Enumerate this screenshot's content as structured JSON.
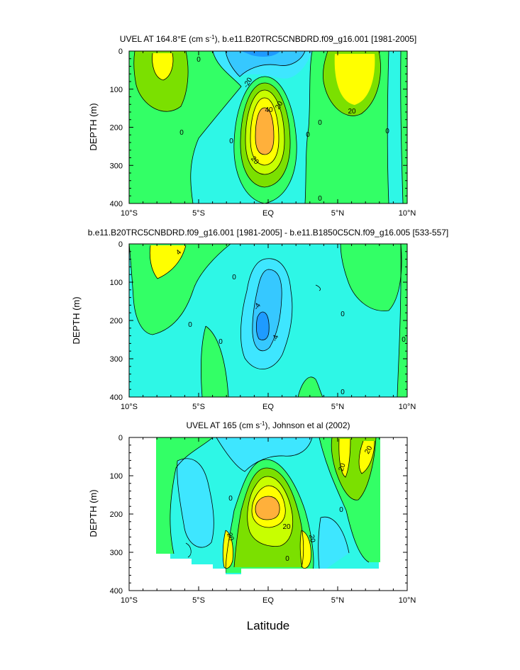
{
  "colors": {
    "c_neg30": "#1e9bff",
    "c_neg20": "#36c8ff",
    "c_neg10": "#3ee6ff",
    "c_0": "#2ef7e6",
    "c_10": "#33ff66",
    "c_20": "#7be000",
    "c_30": "#c8ff00",
    "c_40": "#ffff00",
    "c_50": "#ffb03b",
    "line": "#000000"
  },
  "chart_data": [
    {
      "type": "contour",
      "title_main": "UVEL AT 164.8°E (cm s",
      "title_sup": "-1",
      "title_rest": "), b.e11.B20TRC5CNBDRD.f09_g16.001 [1981-2005]",
      "ylabel": "DEPTH (m)",
      "xlabel": "",
      "xlim": [
        -10,
        10
      ],
      "ylim": [
        400,
        0
      ],
      "xticks": [
        "10°S",
        "5°S",
        "EQ",
        "5°N",
        "10°N"
      ],
      "yticks": [
        "0",
        "100",
        "200",
        "300",
        "400"
      ],
      "contour_labels": [
        "0",
        "-20",
        "40",
        "20",
        "0",
        "0",
        "0",
        "20",
        "0",
        "20",
        "0",
        "0"
      ]
    },
    {
      "type": "contour",
      "title_main": "b.e11.B20TRC5CNBDRD.f09_g16.001 [1981-2005] - b.e11.B1850C5CN.f09_g16.005 [533-557]",
      "title_sup": "",
      "title_rest": "",
      "ylabel": "DEPTH (m)",
      "xlabel": "",
      "xlim": [
        -10,
        10
      ],
      "ylim": [
        400,
        0
      ],
      "xticks": [
        "10°S",
        "5°S",
        "EQ",
        "5°N",
        "10°N"
      ],
      "yticks": [
        "0",
        "100",
        "200",
        "300",
        "400"
      ],
      "contour_labels": [
        "4",
        "0",
        "0",
        "-4",
        "-4",
        "0",
        "0",
        "0",
        "0"
      ]
    },
    {
      "type": "contour",
      "title_main": "UVEL AT 165 (cm s",
      "title_sup": "-1",
      "title_rest": "), Johnson et al (2002)",
      "ylabel": "DEPTH (m)",
      "xlabel": "Latitude",
      "xlim": [
        -10,
        10
      ],
      "ylim": [
        400,
        0
      ],
      "xticks": [
        "10°S",
        "5°S",
        "EQ",
        "5°N",
        "10°N"
      ],
      "yticks": [
        "0",
        "100",
        "200",
        "300",
        "400"
      ],
      "contour_labels": [
        "20",
        "20",
        "0",
        "20",
        "20",
        "20",
        "0",
        "0"
      ]
    }
  ]
}
